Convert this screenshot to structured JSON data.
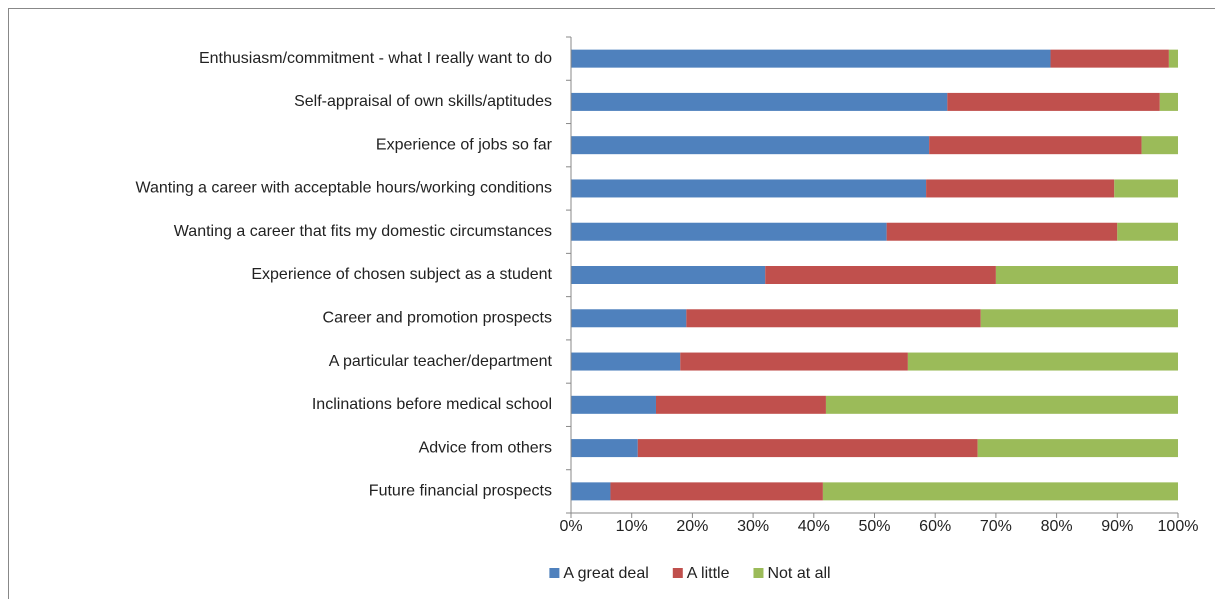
{
  "chart_data": {
    "type": "stacked_bar_horizontal",
    "categories": [
      "Enthusiasm/commitment - what I really want to do",
      "Self-appraisal of own skills/aptitudes",
      "Experience of jobs so far",
      "Wanting a career with acceptable hours/working conditions",
      "Wanting a career that fits my domestic circumstances",
      "Experience of chosen subject as a student",
      "Career and promotion prospects",
      "A particular teacher/department",
      "Inclinations before medical school",
      "Advice from others",
      "Future financial prospects"
    ],
    "series": [
      {
        "name": "A great deal",
        "color": "#4f81bd",
        "values": [
          79,
          62,
          59,
          58.5,
          52,
          32,
          19,
          18,
          14,
          11,
          6.5
        ]
      },
      {
        "name": "A little",
        "color": "#c0504d",
        "values": [
          19.5,
          35,
          35,
          31,
          38,
          38,
          48.5,
          37.5,
          28,
          56,
          35
        ]
      },
      {
        "name": "Not at all",
        "color": "#9bbb59",
        "values": [
          1.5,
          3,
          6,
          10.5,
          10,
          30,
          32.5,
          44.5,
          58,
          33,
          58.5
        ]
      }
    ],
    "xlim": [
      0,
      100
    ],
    "xticks": [
      {
        "value": 0,
        "label": "0%"
      },
      {
        "value": 10,
        "label": "10%"
      },
      {
        "value": 20,
        "label": "20%"
      },
      {
        "value": 30,
        "label": "30%"
      },
      {
        "value": 40,
        "label": "40%"
      },
      {
        "value": 50,
        "label": "50%"
      },
      {
        "value": 60,
        "label": "60%"
      },
      {
        "value": 70,
        "label": "70%"
      },
      {
        "value": 80,
        "label": "80%"
      },
      {
        "value": 90,
        "label": "90%"
      },
      {
        "value": 100,
        "label": "100%"
      }
    ],
    "legend": "bottom"
  }
}
